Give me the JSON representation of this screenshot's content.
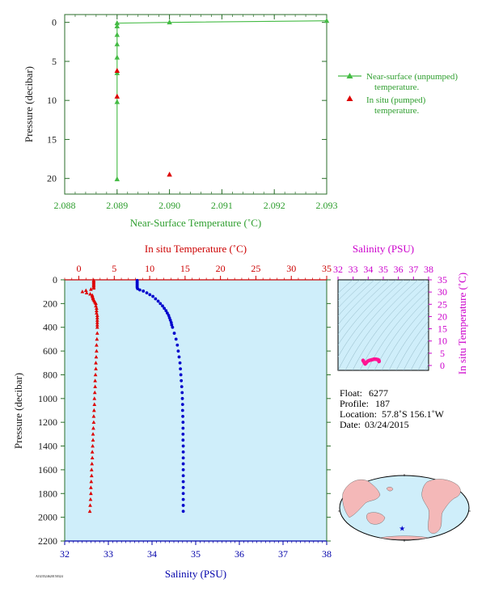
{
  "charts": {
    "top": {
      "type": "scatter",
      "xlabel": "Near-Surface Temperature (˚C)",
      "ylabel": "Pressure (decibar)",
      "xlim": [
        2.088,
        2.093
      ],
      "ylim": [
        22,
        -1
      ],
      "xticks": [
        "2.088",
        "2.089",
        "2.090",
        "2.091",
        "2.092",
        "2.093"
      ],
      "xtick_values": [
        2.088,
        2.089,
        2.09,
        2.091,
        2.092,
        2.093
      ],
      "yticks": [
        "0",
        "5",
        "10",
        "15",
        "20"
      ],
      "ytick_values": [
        0,
        5,
        10,
        15,
        20
      ],
      "legend": {
        "unpumped_line1": "Near-surface (unpumped)",
        "unpumped_line2": "temperature.",
        "pumped_line1": "In situ (pumped)",
        "pumped_line2": "temperature."
      },
      "series": [
        {
          "name": "Near-surface (unpumped) temperature.",
          "color": "#44bb44",
          "marker": "triangle",
          "points": [
            {
              "x": 2.093,
              "y": -0.2
            },
            {
              "x": 2.09,
              "y": 0.0
            },
            {
              "x": 2.089,
              "y": 0.1
            },
            {
              "x": 2.089,
              "y": 0.5
            },
            {
              "x": 2.089,
              "y": 1.6
            },
            {
              "x": 2.089,
              "y": 2.8
            },
            {
              "x": 2.089,
              "y": 4.5
            },
            {
              "x": 2.089,
              "y": 6.5
            },
            {
              "x": 2.089,
              "y": 10.2
            },
            {
              "x": 2.089,
              "y": 20.1
            }
          ]
        },
        {
          "name": "In situ (pumped) temperature.",
          "color": "#dd0000",
          "marker": "triangle",
          "points": [
            {
              "x": 2.089,
              "y": 6.2
            },
            {
              "x": 2.089,
              "y": 9.5
            },
            {
              "x": 2.09,
              "y": 19.5
            }
          ]
        }
      ]
    },
    "main": {
      "type": "scatter",
      "ylabel": "Pressure (decibar)",
      "ylim": [
        2200,
        0
      ],
      "yticks": [
        "0",
        "200",
        "400",
        "600",
        "800",
        "1000",
        "1200",
        "1400",
        "1600",
        "1800",
        "2000",
        "2200"
      ],
      "ytick_values": [
        0,
        200,
        400,
        600,
        800,
        1000,
        1200,
        1400,
        1600,
        1800,
        2000,
        2200
      ],
      "top_axis": {
        "label": "In situ Temperature (˚C)",
        "xlim": [
          -2,
          35
        ],
        "ticks": [
          "0",
          "5",
          "10",
          "15",
          "20",
          "25",
          "30",
          "35"
        ],
        "tick_values": [
          0,
          5,
          10,
          15,
          20,
          25,
          30,
          35
        ]
      },
      "bottom_axis": {
        "label": "Salinity (PSU)",
        "xlim": [
          32,
          38
        ],
        "ticks": [
          "32",
          "33",
          "34",
          "35",
          "36",
          "37",
          "38"
        ],
        "tick_values": [
          32,
          33,
          34,
          35,
          36,
          37,
          38
        ]
      },
      "series": [
        {
          "name": "In situ Temperature (˚C)",
          "color": "#dd0000",
          "axis": "top",
          "points": [
            [
              2.1,
              5
            ],
            [
              2.1,
              10
            ],
            [
              2.1,
              20
            ],
            [
              2.1,
              30
            ],
            [
              2.1,
              40
            ],
            [
              2.1,
              50
            ],
            [
              2.1,
              60
            ],
            [
              2.1,
              70
            ],
            [
              1.7,
              80
            ],
            [
              1.0,
              90
            ],
            [
              0.5,
              100
            ],
            [
              1.1,
              110
            ],
            [
              1.6,
              120
            ],
            [
              1.9,
              130
            ],
            [
              1.9,
              140
            ],
            [
              2.0,
              150
            ],
            [
              2.0,
              160
            ],
            [
              2.1,
              170
            ],
            [
              2.2,
              180
            ],
            [
              2.3,
              190
            ],
            [
              2.4,
              200
            ],
            [
              2.4,
              220
            ],
            [
              2.5,
              240
            ],
            [
              2.5,
              260
            ],
            [
              2.5,
              280
            ],
            [
              2.6,
              300
            ],
            [
              2.6,
              320
            ],
            [
              2.6,
              340
            ],
            [
              2.6,
              360
            ],
            [
              2.6,
              380
            ],
            [
              2.6,
              400
            ],
            [
              2.6,
              450
            ],
            [
              2.55,
              500
            ],
            [
              2.5,
              550
            ],
            [
              2.5,
              600
            ],
            [
              2.45,
              650
            ],
            [
              2.4,
              700
            ],
            [
              2.4,
              750
            ],
            [
              2.35,
              800
            ],
            [
              2.3,
              850
            ],
            [
              2.3,
              900
            ],
            [
              2.25,
              950
            ],
            [
              2.2,
              1000
            ],
            [
              2.2,
              1050
            ],
            [
              2.15,
              1100
            ],
            [
              2.1,
              1150
            ],
            [
              2.1,
              1200
            ],
            [
              2.05,
              1250
            ],
            [
              2.0,
              1300
            ],
            [
              2.0,
              1350
            ],
            [
              1.95,
              1400
            ],
            [
              1.9,
              1450
            ],
            [
              1.9,
              1500
            ],
            [
              1.85,
              1550
            ],
            [
              1.8,
              1600
            ],
            [
              1.8,
              1650
            ],
            [
              1.75,
              1700
            ],
            [
              1.7,
              1750
            ],
            [
              1.7,
              1800
            ],
            [
              1.65,
              1850
            ],
            [
              1.6,
              1900
            ],
            [
              1.55,
              1950
            ]
          ]
        },
        {
          "name": "Salinity (PSU)",
          "color": "#0000cc",
          "axis": "bottom",
          "points": [
            [
              33.66,
              5
            ],
            [
              33.66,
              15
            ],
            [
              33.66,
              25
            ],
            [
              33.66,
              35
            ],
            [
              33.66,
              45
            ],
            [
              33.66,
              55
            ],
            [
              33.66,
              65
            ],
            [
              33.67,
              75
            ],
            [
              33.72,
              85
            ],
            [
              33.8,
              95
            ],
            [
              33.88,
              110
            ],
            [
              33.95,
              125
            ],
            [
              34.02,
              140
            ],
            [
              34.08,
              160
            ],
            [
              34.14,
              180
            ],
            [
              34.19,
              200
            ],
            [
              34.24,
              220
            ],
            [
              34.28,
              240
            ],
            [
              34.32,
              260
            ],
            [
              34.35,
              280
            ],
            [
              34.38,
              300
            ],
            [
              34.4,
              320
            ],
            [
              34.42,
              340
            ],
            [
              34.44,
              360
            ],
            [
              34.45,
              380
            ],
            [
              34.47,
              400
            ],
            [
              34.51,
              450
            ],
            [
              34.55,
              500
            ],
            [
              34.58,
              550
            ],
            [
              34.6,
              600
            ],
            [
              34.62,
              650
            ],
            [
              34.64,
              700
            ],
            [
              34.65,
              750
            ],
            [
              34.66,
              800
            ],
            [
              34.67,
              850
            ],
            [
              34.68,
              900
            ],
            [
              34.69,
              950
            ],
            [
              34.695,
              1000
            ],
            [
              34.7,
              1050
            ],
            [
              34.7,
              1100
            ],
            [
              34.705,
              1150
            ],
            [
              34.71,
              1200
            ],
            [
              34.71,
              1250
            ],
            [
              34.71,
              1300
            ],
            [
              34.71,
              1350
            ],
            [
              34.715,
              1400
            ],
            [
              34.715,
              1450
            ],
            [
              34.715,
              1500
            ],
            [
              34.715,
              1550
            ],
            [
              34.715,
              1600
            ],
            [
              34.715,
              1650
            ],
            [
              34.715,
              1700
            ],
            [
              34.715,
              1750
            ],
            [
              34.715,
              1800
            ],
            [
              34.715,
              1850
            ],
            [
              34.715,
              1900
            ],
            [
              34.715,
              1950
            ]
          ]
        }
      ]
    },
    "ts": {
      "type": "scatter",
      "xlabel": "Salinity (PSU)",
      "ylabel": "In situ Temperature (˚C)",
      "xlim": [
        32,
        38
      ],
      "ylim": [
        -2,
        35
      ],
      "xticks": [
        "32",
        "33",
        "34",
        "35",
        "36",
        "37",
        "38"
      ],
      "xtick_values": [
        32,
        33,
        34,
        35,
        36,
        37,
        38
      ],
      "yticks": [
        "0",
        "5",
        "10",
        "15",
        "20",
        "25",
        "30",
        "35"
      ],
      "ytick_values": [
        0,
        5,
        10,
        15,
        20,
        25,
        30,
        35
      ],
      "color": "#ff1493",
      "points": [
        [
          33.66,
          2.1
        ],
        [
          33.66,
          2.0
        ],
        [
          33.7,
          1.6
        ],
        [
          33.75,
          1.0
        ],
        [
          33.8,
          0.6
        ],
        [
          33.86,
          1.0
        ],
        [
          33.92,
          1.5
        ],
        [
          33.98,
          1.8
        ],
        [
          34.04,
          2.0
        ],
        [
          34.1,
          2.1
        ],
        [
          34.16,
          2.2
        ],
        [
          34.22,
          2.3
        ],
        [
          34.28,
          2.4
        ],
        [
          34.34,
          2.5
        ],
        [
          34.4,
          2.6
        ],
        [
          34.45,
          2.6
        ],
        [
          34.5,
          2.55
        ],
        [
          34.55,
          2.5
        ],
        [
          34.6,
          2.45
        ],
        [
          34.64,
          2.4
        ],
        [
          34.67,
          2.3
        ],
        [
          34.69,
          2.2
        ],
        [
          34.7,
          2.1
        ],
        [
          34.71,
          2.0
        ],
        [
          34.71,
          1.9
        ],
        [
          34.715,
          1.8
        ],
        [
          34.715,
          1.7
        ],
        [
          34.715,
          1.6
        ]
      ]
    }
  },
  "info": {
    "float_label": "Float:",
    "float_value": "6277",
    "profile_label": "Profile:",
    "profile_value": "187",
    "location_label": "Location:",
    "location_value": "57.8˚S  156.1˚W",
    "date_label": "Date:",
    "date_value": "03/24/2015"
  },
  "map": {
    "marker_glyph": "★",
    "marker_lon": -156.1,
    "marker_lat": -57.8,
    "ocean_color": "#cfeefa",
    "land_color": "#f4b8b8"
  },
  "footer": {
    "code": "AO23524620150324"
  }
}
